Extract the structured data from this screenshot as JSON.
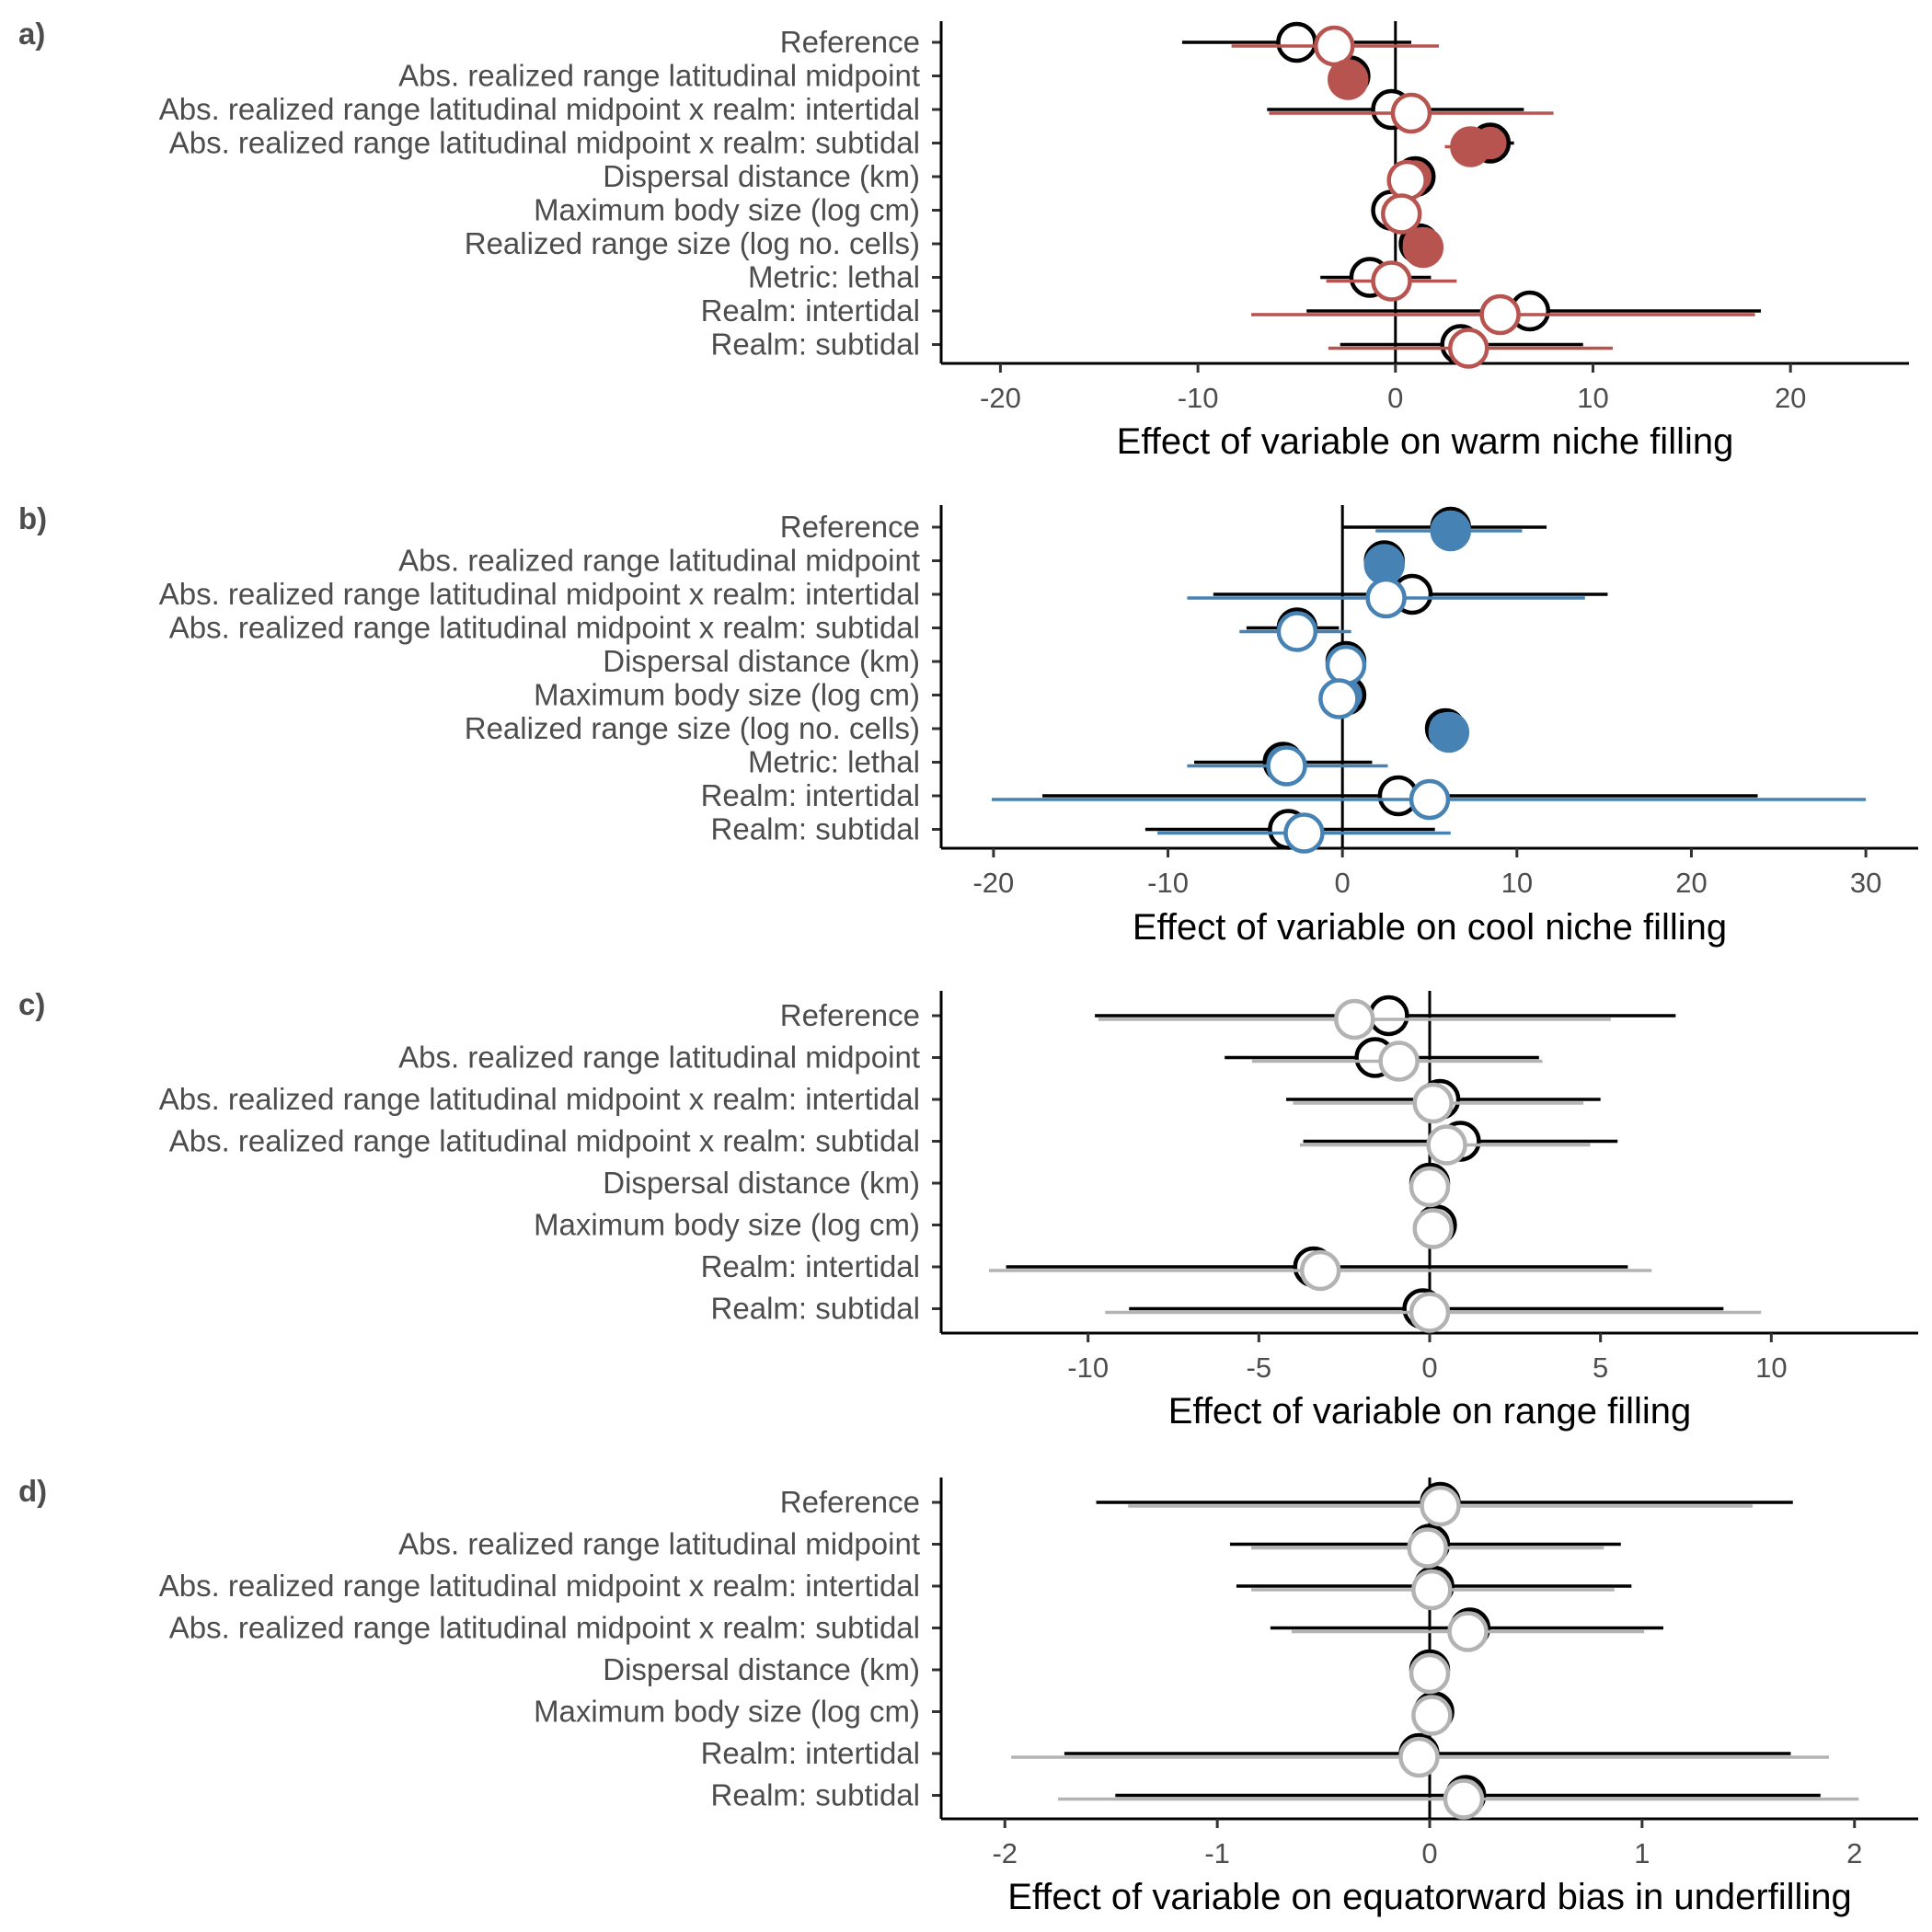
{
  "chart_data": [
    {
      "type": "forest",
      "panel_label": "a)",
      "xlabel": "Effect of variable on warm niche filling",
      "xlim": [
        -23,
        26
      ],
      "xticks": [
        -20,
        -10,
        0,
        10,
        20
      ],
      "tick_labels": [
        "-20",
        "-10",
        "0",
        "10",
        "20"
      ],
      "accent_color": "#b85450",
      "categories": [
        "Reference",
        "Abs. realized range latitudinal midpoint",
        "Abs. realized range latitudinal midpoint x realm: intertidal",
        "Abs. realized range latitudinal midpoint x realm: subtidal",
        "Dispersal distance (km)",
        "Maximum body size (log cm)",
        "Realized range size (log no. cells)",
        "Metric: lethal",
        "Realm: intertidal",
        "Realm: subtidal"
      ],
      "series": [
        {
          "color": "#000000",
          "estimates": [
            -5.0,
            -2.3,
            -0.2,
            4.8,
            1.0,
            -0.2,
            1.2,
            -1.3,
            6.8,
            3.3
          ],
          "lower": [
            -10.8,
            -2.3,
            -6.5,
            2.8,
            1.0,
            -0.2,
            1.2,
            -3.8,
            -4.5,
            -2.8
          ],
          "upper": [
            0.8,
            -2.3,
            6.5,
            6.0,
            1.0,
            -0.2,
            1.2,
            1.8,
            18.5,
            9.5
          ],
          "significant": [
            false,
            true,
            false,
            true,
            true,
            false,
            true,
            false,
            false,
            false
          ]
        },
        {
          "color": "#b85450",
          "estimates": [
            -3.1,
            -2.4,
            0.8,
            3.8,
            0.6,
            0.3,
            1.4,
            -0.2,
            5.3,
            3.7
          ],
          "lower": [
            -8.3,
            -2.4,
            -6.4,
            2.5,
            0.6,
            0.3,
            1.4,
            -3.5,
            -7.3,
            -3.4
          ],
          "upper": [
            2.2,
            -2.4,
            8.0,
            5.0,
            0.6,
            0.3,
            1.4,
            3.1,
            18.2,
            11.0
          ],
          "significant": [
            false,
            true,
            false,
            true,
            false,
            false,
            true,
            false,
            false,
            false
          ]
        }
      ]
    },
    {
      "type": "forest",
      "panel_label": "b)",
      "xlabel": "Effect of variable on cool niche filling",
      "xlim": [
        -23,
        33
      ],
      "xticks": [
        -20,
        -10,
        0,
        10,
        20,
        30
      ],
      "tick_labels": [
        "-20",
        "-10",
        "0",
        "10",
        "20",
        "30"
      ],
      "accent_color": "#4682b4",
      "categories": [
        "Reference",
        "Abs. realized range latitudinal midpoint",
        "Abs. realized range latitudinal midpoint x realm: intertidal",
        "Abs. realized range latitudinal midpoint x realm: subtidal",
        "Dispersal distance (km)",
        "Maximum body size (log cm)",
        "Realized range size (log no. cells)",
        "Metric: lethal",
        "Realm: intertidal",
        "Realm: subtidal"
      ],
      "series": [
        {
          "color": "#000000",
          "estimates": [
            6.2,
            2.4,
            4.0,
            -2.6,
            0.2,
            0.2,
            5.9,
            -3.4,
            3.2,
            -3.1
          ],
          "lower": [
            0.0,
            2.4,
            -7.4,
            -5.5,
            0.2,
            0.0,
            5.9,
            -8.5,
            -17.2,
            -11.3
          ],
          "upper": [
            11.7,
            2.4,
            15.2,
            -0.2,
            0.2,
            1.3,
            5.9,
            1.7,
            23.8,
            5.3
          ],
          "significant": [
            true,
            true,
            false,
            true,
            true,
            true,
            true,
            true,
            false,
            false
          ]
        },
        {
          "color": "#4682b4",
          "estimates": [
            6.2,
            2.4,
            2.5,
            -2.6,
            0.2,
            -0.2,
            6.1,
            -3.2,
            5.0,
            -2.2
          ],
          "lower": [
            1.9,
            2.4,
            -8.9,
            -5.9,
            0.2,
            -0.2,
            6.1,
            -8.9,
            -20.1,
            -10.6
          ],
          "upper": [
            10.3,
            2.4,
            13.9,
            0.5,
            0.2,
            -0.2,
            6.1,
            2.6,
            30.0,
            6.2
          ],
          "significant": [
            true,
            true,
            false,
            false,
            false,
            false,
            true,
            false,
            false,
            false
          ]
        }
      ]
    },
    {
      "type": "forest",
      "panel_label": "c)",
      "xlabel": "Effect of variable on range filling",
      "xlim": [
        -14.3,
        14.3
      ],
      "xticks": [
        -10,
        -5,
        0,
        5,
        10
      ],
      "tick_labels": [
        "-10",
        "-5",
        "0",
        "5",
        "10"
      ],
      "accent_color": "#b3b3b3",
      "categories": [
        "Reference",
        "Abs. realized range latitudinal midpoint",
        "Abs. realized range latitudinal midpoint x realm: intertidal",
        "Abs. realized range latitudinal midpoint x realm: subtidal",
        "Dispersal distance (km)",
        "Maximum body size (log cm)",
        "Realm: intertidal",
        "Realm: subtidal"
      ],
      "series": [
        {
          "color": "#000000",
          "estimates": [
            -1.2,
            -1.6,
            0.3,
            0.9,
            0.0,
            0.2,
            -3.4,
            -0.2
          ],
          "lower": [
            -9.8,
            -6.0,
            -4.2,
            -3.7,
            0.0,
            0.2,
            -12.4,
            -8.8
          ],
          "upper": [
            7.2,
            3.2,
            5.0,
            5.5,
            0.0,
            0.2,
            5.8,
            8.6
          ],
          "significant": [
            false,
            false,
            false,
            false,
            false,
            false,
            false,
            false
          ]
        },
        {
          "color": "#b3b3b3",
          "estimates": [
            -2.2,
            -0.9,
            0.1,
            0.5,
            0.0,
            0.1,
            -3.2,
            0.0
          ],
          "lower": [
            -9.7,
            -5.2,
            -4.0,
            -3.8,
            0.0,
            0.1,
            -12.9,
            -9.5
          ],
          "upper": [
            5.3,
            3.3,
            4.5,
            4.7,
            0.0,
            0.1,
            6.5,
            9.7
          ],
          "significant": [
            false,
            false,
            false,
            false,
            false,
            false,
            false,
            false
          ]
        }
      ]
    },
    {
      "type": "forest",
      "panel_label": "d)",
      "xlabel": "Effect of variable on equatorward bias in underfilling",
      "xlim": [
        -2.3,
        2.3
      ],
      "xticks": [
        -2,
        -1,
        0,
        1,
        2
      ],
      "tick_labels": [
        "-2",
        "-1",
        "0",
        "1",
        "2"
      ],
      "accent_color": "#b3b3b3",
      "categories": [
        "Reference",
        "Abs. realized range latitudinal midpoint",
        "Abs. realized range latitudinal midpoint x realm: intertidal",
        "Abs. realized range latitudinal midpoint x realm: subtidal",
        "Dispersal distance (km)",
        "Maximum body size (log cm)",
        "Realm: intertidal",
        "Realm: subtidal"
      ],
      "series": [
        {
          "color": "#000000",
          "estimates": [
            0.05,
            0.0,
            0.02,
            0.19,
            0.0,
            0.02,
            -0.05,
            0.17
          ],
          "lower": [
            -1.57,
            -0.94,
            -0.91,
            -0.75,
            0.0,
            0.02,
            -1.72,
            -1.48
          ],
          "upper": [
            1.71,
            0.9,
            0.95,
            1.1,
            0.0,
            0.02,
            1.7,
            1.84
          ],
          "significant": [
            false,
            false,
            false,
            false,
            false,
            false,
            false,
            false
          ]
        },
        {
          "color": "#b3b3b3",
          "estimates": [
            0.05,
            -0.01,
            0.01,
            0.18,
            0.0,
            0.01,
            -0.05,
            0.16
          ],
          "lower": [
            -1.42,
            -0.84,
            -0.84,
            -0.65,
            0.0,
            0.01,
            -1.97,
            -1.75
          ],
          "upper": [
            1.52,
            0.82,
            0.87,
            1.01,
            0.0,
            0.01,
            1.88,
            2.02
          ],
          "significant": [
            false,
            false,
            false,
            false,
            false,
            false,
            false,
            false
          ]
        }
      ]
    }
  ]
}
